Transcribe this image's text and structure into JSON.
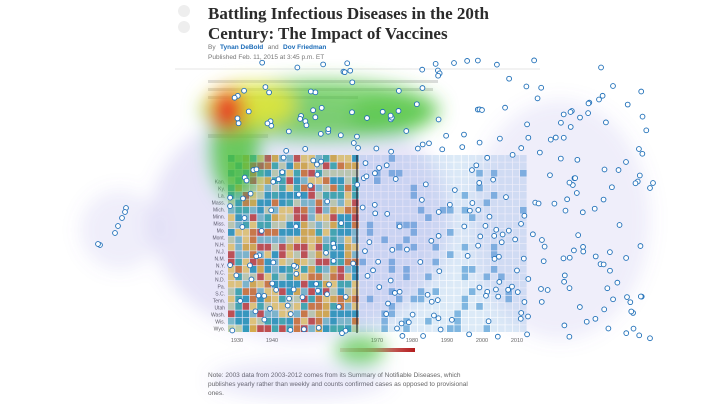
{
  "header": {
    "title": "Battling Infectious Diseases in the 20th Century: The Impact of Vaccines",
    "byline_prefix": "By",
    "authors": [
      "Tynan DeBold",
      "Dov Friedman"
    ],
    "author_separator": "and",
    "published": "Published Feb. 11, 2015 at 3:45 p.m. ET"
  },
  "chart": {
    "states": [
      "Kan.",
      "Ky.",
      "La.",
      "Mass.",
      "Mich.",
      "Minn.",
      "Miss.",
      "Mo.",
      "Mont.",
      "N.H.",
      "N.J.",
      "N.M.",
      "N.Y.",
      "N.C.",
      "N.D.",
      "Pa.",
      "S.C.",
      "Tenn.",
      "Utah",
      "Wash.",
      "Wis.",
      "Wyo."
    ],
    "years": [
      1930,
      1940,
      1970,
      1980,
      1990,
      2000,
      2010
    ]
  },
  "note": "Note: 2003 data from 2003-2012 comes from its Summary of Notifiable Diseases, which publishes yearly rather than weekly and counts confirmed cases as opposed to provisional ones."
}
